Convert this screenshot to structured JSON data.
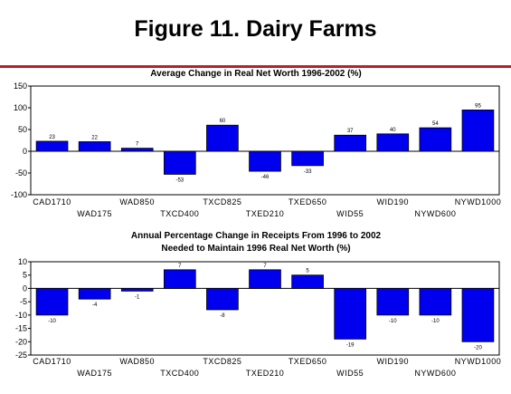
{
  "page": {
    "title": "Figure 11. Dairy Farms",
    "rule_color": "#b8202a"
  },
  "chart_data": [
    {
      "type": "bar",
      "title": "Average Change in Real Net Worth 1996-2002 (%)",
      "categories": [
        "CAD1710",
        "WAD175",
        "WAD850",
        "TXCD400",
        "TXCD825",
        "TXED210",
        "TXED650",
        "WID55",
        "WID190",
        "NYWD600",
        "NYWD1000"
      ],
      "values": [
        23,
        22,
        7,
        -53,
        60,
        -46,
        -33,
        37,
        40,
        54,
        95
      ],
      "ylim": [
        -100,
        150
      ],
      "yticks": [
        -100,
        -50,
        0,
        50,
        100,
        150
      ],
      "bar_color": "#0000ee",
      "grid": false,
      "legend": "none"
    },
    {
      "type": "bar",
      "title": "Annual Percentage Change in Receipts From 1996 to 2002",
      "subtitle": "Needed to Maintain 1996 Real Net Worth (%)",
      "categories": [
        "CAD1710",
        "WAD175",
        "WAD850",
        "TXCD400",
        "TXCD825",
        "TXED210",
        "TXED650",
        "WID55",
        "WID190",
        "NYWD600",
        "NYWD1000"
      ],
      "values": [
        -10,
        -4,
        -1,
        7,
        -8,
        7,
        5,
        -19,
        -10,
        -10,
        -20
      ],
      "ylim": [
        -25,
        10
      ],
      "yticks": [
        -25,
        -20,
        -15,
        -10,
        -5,
        0,
        5,
        10
      ],
      "bar_color": "#0000ee",
      "grid": false,
      "legend": "none"
    }
  ]
}
